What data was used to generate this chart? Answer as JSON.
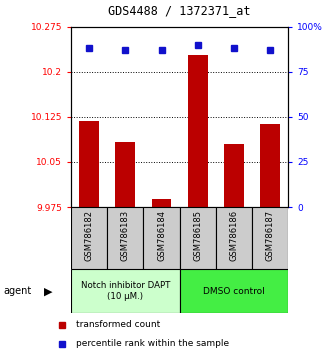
{
  "title": "GDS4488 / 1372371_at",
  "samples": [
    "GSM786182",
    "GSM786183",
    "GSM786184",
    "GSM786185",
    "GSM786186",
    "GSM786187"
  ],
  "bar_values": [
    10.118,
    10.083,
    9.988,
    10.228,
    10.08,
    10.113
  ],
  "percentile_values": [
    88,
    87,
    87,
    90,
    88,
    87
  ],
  "ylim_left": [
    9.975,
    10.275
  ],
  "ylim_right": [
    0,
    100
  ],
  "yticks_left": [
    9.975,
    10.05,
    10.125,
    10.2,
    10.275
  ],
  "yticks_right": [
    0,
    25,
    50,
    75,
    100
  ],
  "ytick_labels_left": [
    "9.975",
    "10.05",
    "10.125",
    "10.2",
    "10.275"
  ],
  "ytick_labels_right": [
    "0",
    "25",
    "50",
    "75",
    "100%"
  ],
  "hlines": [
    10.05,
    10.125,
    10.2
  ],
  "bar_color": "#bb0000",
  "dot_color": "#1111cc",
  "group1_label": "Notch inhibitor DAPT\n(10 μM.)",
  "group2_label": "DMSO control",
  "group1_color": "#ccffcc",
  "group2_color": "#44ee44",
  "agent_label": "agent",
  "legend_bar_label": "transformed count",
  "legend_dot_label": "percentile rank within the sample",
  "background_color": "#ffffff",
  "title_fontsize": 8.5
}
